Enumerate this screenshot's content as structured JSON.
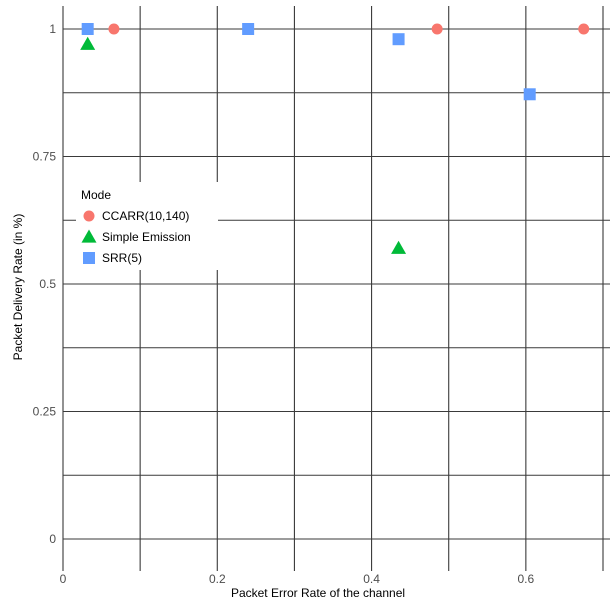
{
  "chart_data": {
    "type": "scatter",
    "xlabel": "Packet Error Rate of the channel",
    "ylabel": "Packet Delivery Rate (in %)",
    "xlim": [
      0,
      0.7
    ],
    "ylim": [
      0,
      1
    ],
    "x_ticks": [
      0,
      0.2,
      0.4,
      0.6
    ],
    "x_tick_labels": [
      "0",
      "0.2",
      "0.4",
      "0.6"
    ],
    "y_ticks": [
      0,
      0.25,
      0.5,
      0.75,
      1
    ],
    "y_tick_labels": [
      "0",
      "0.25",
      "0.5",
      "0.75",
      "1"
    ],
    "grid": true,
    "legend_title": "Mode",
    "legend_position": "middle-left",
    "series": [
      {
        "name": "CCARR(10,140)",
        "shape": "circle",
        "color": "#F8766D",
        "points": [
          {
            "x": 0.066,
            "y": 1.0
          },
          {
            "x": 0.485,
            "y": 1.0
          },
          {
            "x": 0.675,
            "y": 1.0
          }
        ]
      },
      {
        "name": "Simple Emission",
        "shape": "triangle",
        "color": "#00BA38",
        "points": [
          {
            "x": 0.032,
            "y": 0.97
          },
          {
            "x": 0.435,
            "y": 0.57
          }
        ]
      },
      {
        "name": "SRR(5)",
        "shape": "square",
        "color": "#619CFF",
        "points": [
          {
            "x": 0.032,
            "y": 1.0
          },
          {
            "x": 0.24,
            "y": 1.0
          },
          {
            "x": 0.435,
            "y": 0.98
          },
          {
            "x": 0.605,
            "y": 0.872
          }
        ]
      }
    ]
  }
}
